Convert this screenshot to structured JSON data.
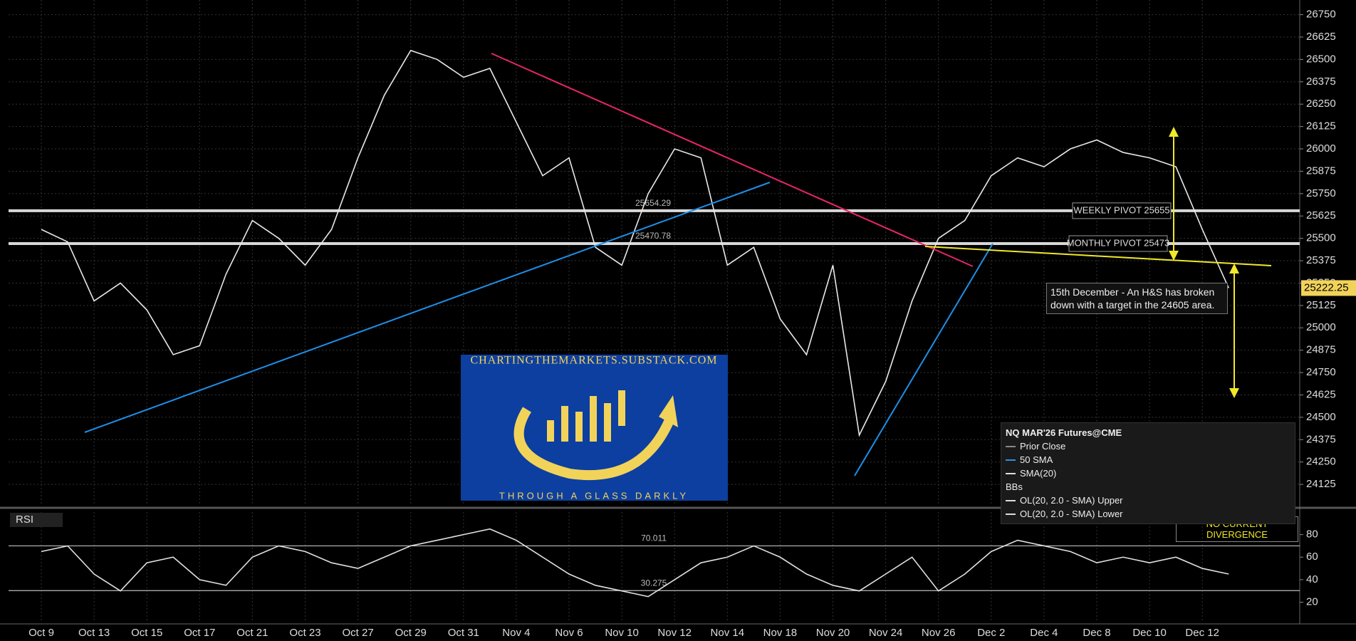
{
  "chart_data": [
    {
      "type": "line",
      "categories": [
        "Oct 9",
        null,
        "Oct 13",
        null,
        "Oct 15",
        null,
        "Oct 17",
        null,
        "Oct 21",
        null,
        "Oct 23",
        null,
        "Oct 27",
        null,
        "Oct 29",
        null,
        "Oct 31",
        null,
        "Nov 4",
        null,
        "Nov 6",
        null,
        "Nov 10",
        null,
        "Nov 12",
        null,
        "Nov 14",
        null,
        "Nov 18",
        null,
        "Nov 20",
        null,
        "Nov 24",
        null,
        "Nov 26",
        null,
        "Dec 2",
        null,
        "Dec 4",
        null,
        "Dec 8",
        null,
        "Dec 10",
        null,
        "Dec 12",
        null
      ],
      "series": [
        {
          "name": "NQ MAR'26 Futures@CME",
          "color": "#e8e8e8",
          "values": [
            25550,
            25480,
            25150,
            25250,
            25100,
            24850,
            24900,
            25300,
            25600,
            25500,
            25350,
            25550,
            25950,
            26300,
            26550,
            26500,
            26400,
            26450,
            26150,
            25850,
            25950,
            25450,
            25350,
            25750,
            26000,
            25950,
            25350,
            25450,
            25050,
            24850,
            25350,
            24400,
            24700,
            25150,
            25500,
            25600,
            25850,
            25950,
            25900,
            26000,
            26050,
            25980,
            25950,
            25900,
            25550,
            25222.25
          ]
        }
      ],
      "ylim": [
        24014,
        26832
      ],
      "yticks": [
        24125,
        24250,
        24375,
        24500,
        24625,
        24750,
        24875,
        25000,
        25125,
        25250,
        25375,
        25500,
        25625,
        25750,
        25875,
        26000,
        26125,
        26250,
        26375,
        26500,
        26625,
        26750
      ],
      "grid": true,
      "hlines": [
        {
          "value": 25654.29,
          "label": "WEEKLY PIVOT 25655",
          "color": "#d8d8d8"
        },
        {
          "value": 25470.78,
          "label": "MONTHLY PIVOT 25473",
          "color": "#d8d8d8"
        }
      ],
      "annotation": "15th December - An H&S has broken down with a target in the 24605 area.",
      "legend": {
        "title": "NQ MAR'26 Futures@CME",
        "items": [
          {
            "name": "Prior Close",
            "color": "#888888"
          },
          {
            "name": "50 SMA",
            "color": "#2f8fe0"
          },
          {
            "name": "SMA(20)",
            "color": "#dddddd"
          },
          {
            "name": "BBs",
            "color": null
          },
          {
            "name": "OL(20, 2.0 - SMA) Upper",
            "color": "#dddddd"
          },
          {
            "name": "OL(20, 2.0 - SMA) Lower",
            "color": "#dddddd"
          }
        ]
      },
      "watermark": {
        "top": "CHARTINGTHEMARKETS.SUBSTACK.COM",
        "bottom": "THROUGH A GLASS DARKLY"
      }
    },
    {
      "type": "line",
      "title": "RSI",
      "series": [
        {
          "name": "RSI",
          "color": "#e0e0e0",
          "values": [
            65,
            70,
            45,
            30,
            55,
            60,
            40,
            35,
            60,
            70,
            65,
            55,
            50,
            60,
            70,
            75,
            80,
            85,
            75,
            60,
            45,
            35,
            30,
            25,
            40,
            55,
            60,
            70,
            60,
            45,
            35,
            30,
            45,
            60,
            30,
            45,
            65,
            75,
            70,
            65,
            55,
            60,
            55,
            60,
            50,
            45
          ]
        }
      ],
      "ylim": [
        2,
        100
      ],
      "yticks": [
        20,
        40,
        60,
        80
      ],
      "hlines": [
        {
          "value": 70.011,
          "color": "#bbbbbb"
        },
        {
          "value": 30.275,
          "color": "#bbbbbb"
        }
      ],
      "annotation": "NO CURRENT DIVERGENCE"
    }
  ]
}
